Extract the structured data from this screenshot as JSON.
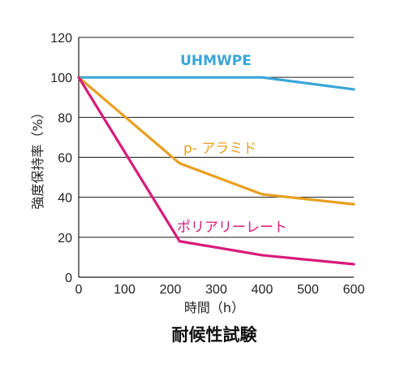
{
  "chart_data": {
    "type": "line",
    "title": "耐候性試験",
    "xlabel": "時間（h）",
    "ylabel": "強度保持率（%）",
    "xlim": [
      0,
      600
    ],
    "ylim": [
      0,
      120
    ],
    "x_ticks": [
      0,
      100,
      200,
      300,
      400,
      500,
      600
    ],
    "y_ticks": [
      0,
      20,
      40,
      60,
      80,
      100,
      120
    ],
    "grid": "horizontal",
    "series": [
      {
        "name": "UHMWPE",
        "color": "#3aa6d8",
        "x": [
          0,
          400,
          600
        ],
        "y": [
          100,
          100,
          94
        ]
      },
      {
        "name": "p- アラミド",
        "color": "#e8a020",
        "x": [
          0,
          220,
          400,
          600
        ],
        "y": [
          100,
          57,
          41.5,
          36.5
        ]
      },
      {
        "name": "ポリアリーレート",
        "color": "#d81b7a",
        "x": [
          0,
          220,
          400,
          600
        ],
        "y": [
          100,
          18,
          11,
          6.5
        ]
      }
    ]
  }
}
